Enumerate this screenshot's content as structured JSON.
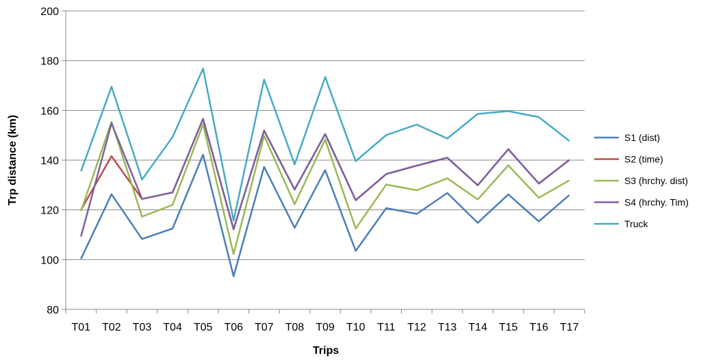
{
  "chart_data": {
    "type": "line",
    "xlabel": "Trips",
    "ylabel": "Trp distance (km)",
    "ylim": [
      80,
      200
    ],
    "yticks": [
      80,
      100,
      120,
      140,
      160,
      180,
      200
    ],
    "grid": "horizontal",
    "legend_position": "right",
    "categories": [
      "T01",
      "T02",
      "T03",
      "T04",
      "T05",
      "T06",
      "T07",
      "T08",
      "T09",
      "T10",
      "T11",
      "T12",
      "T13",
      "T14",
      "T15",
      "T16",
      "T17"
    ],
    "series": [
      {
        "name": "S1 (dist)",
        "color": "#4a7ebb",
        "values": [
          100.3,
          126.3,
          108.3,
          112.5,
          142.2,
          93.3,
          137.3,
          112.8,
          136.0,
          103.5,
          120.7,
          118.4,
          126.8,
          114.8,
          126.2,
          115.4,
          126.0
        ]
      },
      {
        "name": "S2 (time)",
        "color": "#be4b48",
        "values": [
          120.0,
          141.6,
          124.4,
          127.0,
          156.6,
          112.2,
          151.9,
          128.2,
          150.5,
          123.9,
          134.4,
          137.8,
          141.0,
          129.9,
          144.4,
          130.6,
          140.1
        ]
      },
      {
        "name": "S3 (hrchy. dist)",
        "color": "#98b954",
        "values": [
          119.5,
          155.4,
          117.3,
          122.0,
          154.4,
          102.2,
          149.8,
          122.3,
          148.3,
          112.5,
          130.2,
          127.9,
          132.7,
          124.2,
          137.9,
          124.9,
          131.9
        ]
      },
      {
        "name": "S4 (hrchy. Tim)",
        "color": "#7d60a0",
        "values": [
          109.3,
          154.8,
          124.4,
          127.0,
          156.6,
          112.2,
          151.9,
          128.2,
          150.5,
          123.9,
          134.4,
          137.8,
          141.0,
          129.9,
          144.4,
          130.6,
          140.1
        ]
      },
      {
        "name": "Truck",
        "color": "#46aac5",
        "values": [
          135.5,
          169.5,
          132.2,
          149.3,
          176.8,
          115.7,
          172.4,
          138.3,
          173.4,
          139.6,
          150.1,
          154.3,
          148.7,
          158.6,
          159.7,
          157.3,
          147.7
        ]
      }
    ]
  }
}
